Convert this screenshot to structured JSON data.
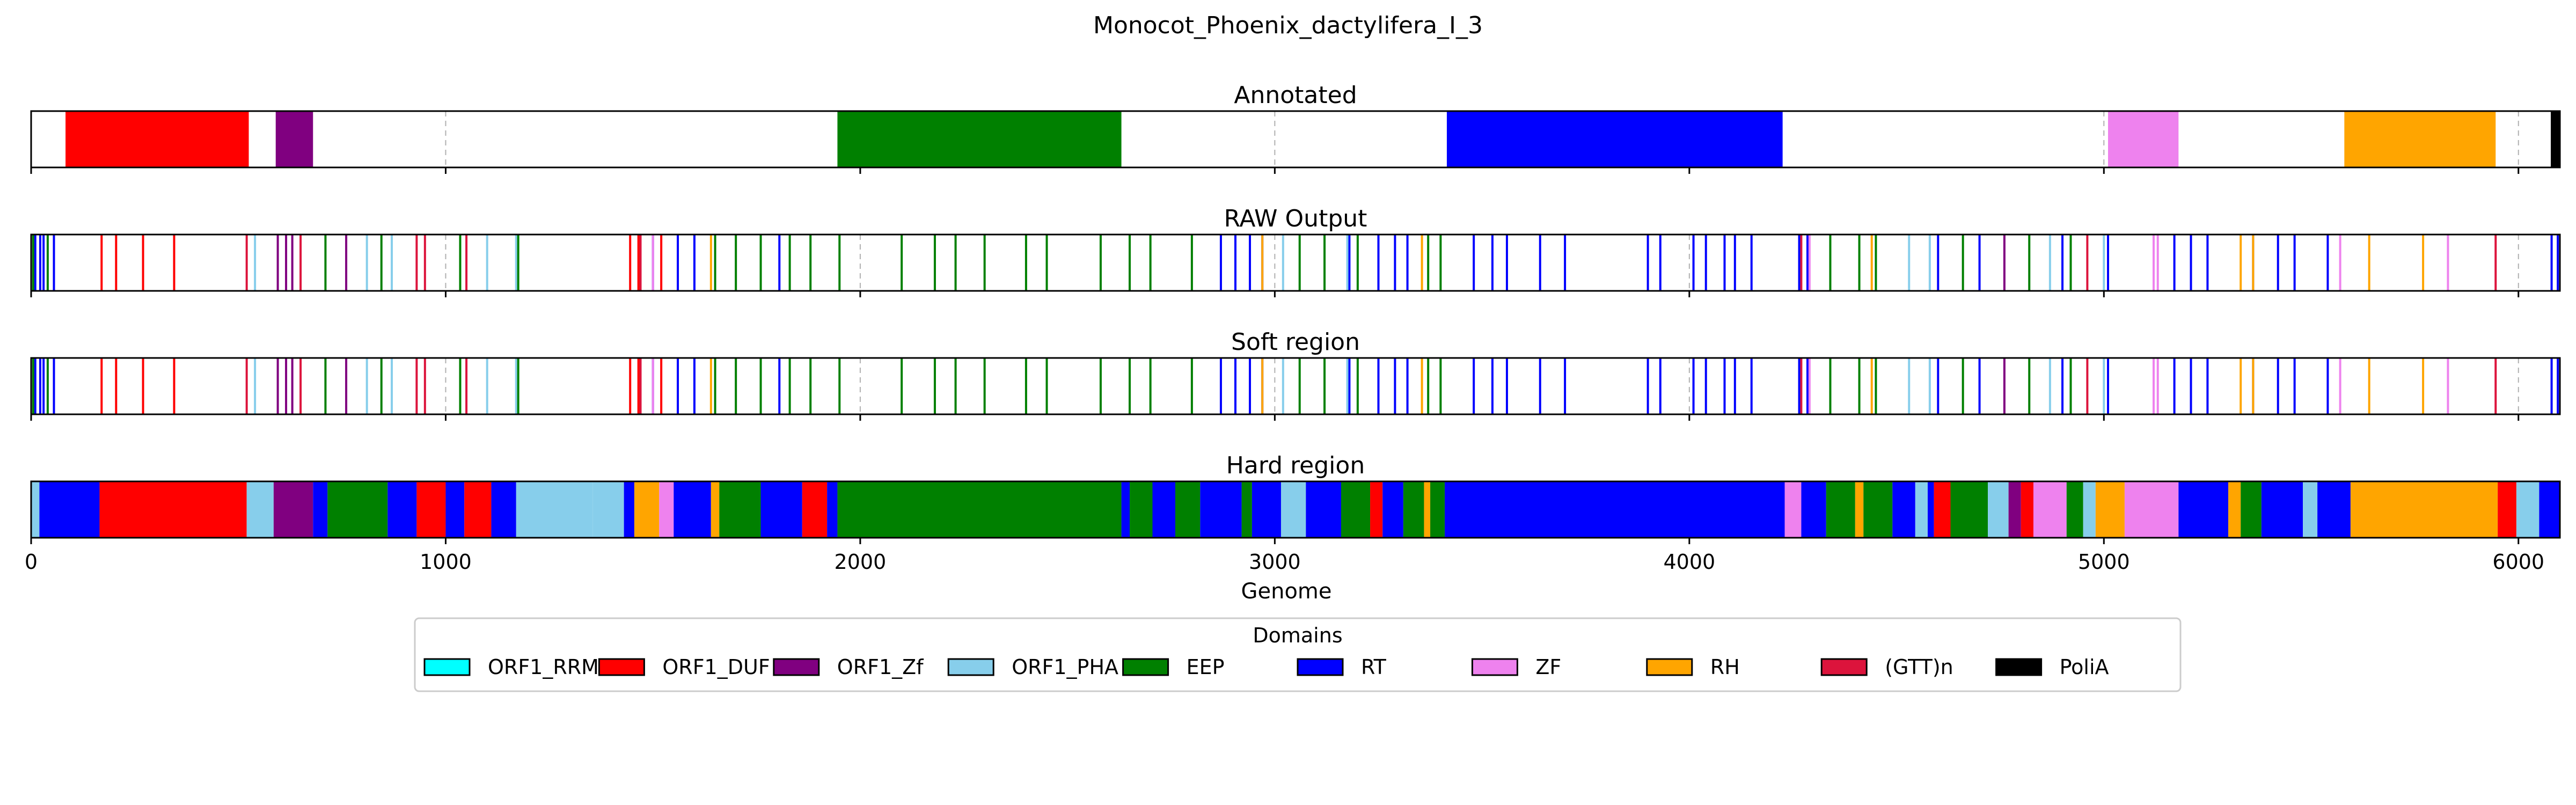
{
  "chart_data": {
    "type": "bar",
    "title": "Monocot_Phoenix_dactylifera_I_3",
    "xlabel": "Genome",
    "xlim": [
      0,
      6100
    ],
    "xticks": [
      0,
      1000,
      2000,
      3000,
      4000,
      5000,
      6000
    ],
    "grid": "vertical dashed gridlines at major x ticks",
    "legend": {
      "title": "Domains",
      "placement": "bottom-center",
      "entries": [
        {
          "label": "ORF1_RRM",
          "color": "#00FFFF"
        },
        {
          "label": "ORF1_DUF",
          "color": "#FF0000"
        },
        {
          "label": "ORF1_Zf",
          "color": "#800080"
        },
        {
          "label": "ORF1_PHA",
          "color": "#87CEEB"
        },
        {
          "label": "EEP",
          "color": "#008000"
        },
        {
          "label": "RT",
          "color": "#0000FF"
        },
        {
          "label": "ZF",
          "color": "#EE82EE"
        },
        {
          "label": "RH",
          "color": "#FFA500"
        },
        {
          "label": "(GTT)n",
          "color": "#DC143C"
        },
        {
          "label": "PoliA",
          "color": "#000000"
        }
      ]
    },
    "panels": [
      {
        "title": "Annotated",
        "segments": [
          {
            "domain": "ORF1_DUF",
            "start": 83,
            "end": 525
          },
          {
            "domain": "ORF1_Zf",
            "start": 590,
            "end": 680
          },
          {
            "domain": "EEP",
            "start": 1945,
            "end": 2630
          },
          {
            "domain": "RT",
            "start": 3415,
            "end": 4225
          },
          {
            "domain": "ZF",
            "start": 5010,
            "end": 5180
          },
          {
            "domain": "RH",
            "start": 5580,
            "end": 5945
          },
          {
            "domain": "PoliA",
            "start": 6078,
            "end": 6100
          }
        ]
      },
      {
        "title": "RAW Output",
        "lines": [
          {
            "domain": "RT",
            "positions": [
              10,
              22,
              30,
              55,
              1500,
              1560,
              1600,
              1805,
              2870,
              2905,
              2940,
              2970,
              3180,
              3250,
              3290,
              3320,
              3480,
              3525,
              3560,
              3640,
              3700,
              3900,
              3930,
              4010,
              4040,
              4085,
              4110,
              4150,
              4265,
              4285,
              4600,
              4700,
              4900,
              5010,
              5170,
              5210,
              5250,
              5360,
              5420,
              5460,
              5540,
              6080,
              6095
            ]
          },
          {
            "domain": "ORF1_DUF",
            "positions": [
              170,
              205,
              270,
              345,
              1445,
              1465,
              1520
            ]
          },
          {
            "domain": "(GTT)n",
            "positions": [
              520,
              650,
              930,
              950,
              1050,
              1470,
              4270,
              4960,
              5945
            ]
          },
          {
            "domain": "ORF1_PHA",
            "positions": [
              540,
              810,
              870,
              1100,
              1170,
              3020,
              3175,
              4530,
              4580,
              4870,
              5000
            ]
          },
          {
            "domain": "ORF1_Zf",
            "positions": [
              595,
              615,
              630,
              760,
              4760
            ]
          },
          {
            "domain": "EEP",
            "positions": [
              5,
              40,
              710,
              845,
              1035,
              1175,
              1650,
              1700,
              1760,
              1830,
              1880,
              1950,
              2100,
              2180,
              2230,
              2300,
              2400,
              2450,
              2580,
              2650,
              2700,
              2800,
              3060,
              3120,
              3200,
              3370,
              3400,
              4340,
              4410,
              4450,
              4660,
              4820,
              4920
            ]
          },
          {
            "domain": "ZF",
            "positions": [
              1500,
              4290,
              5120,
              5130,
              5570,
              5830
            ]
          },
          {
            "domain": "RH",
            "positions": [
              1640,
              2970,
              3355,
              4440,
              5330,
              5360,
              5640,
              5770
            ]
          }
        ]
      },
      {
        "title": "Soft region",
        "lines": [
          {
            "domain": "RT",
            "positions": [
              10,
              22,
              30,
              55,
              1500,
              1560,
              1600,
              1805,
              2870,
              2905,
              2940,
              2970,
              3180,
              3250,
              3290,
              3320,
              3480,
              3525,
              3560,
              3640,
              3700,
              3900,
              3930,
              4010,
              4040,
              4085,
              4110,
              4150,
              4265,
              4285,
              4600,
              4700,
              4900,
              5010,
              5170,
              5210,
              5250,
              5360,
              5420,
              5460,
              5540,
              6080,
              6095
            ]
          },
          {
            "domain": "ORF1_DUF",
            "positions": [
              170,
              205,
              270,
              345,
              1445,
              1465,
              1520
            ]
          },
          {
            "domain": "(GTT)n",
            "positions": [
              520,
              650,
              930,
              950,
              1050,
              1470,
              4270,
              4960,
              5945
            ]
          },
          {
            "domain": "ORF1_PHA",
            "positions": [
              540,
              810,
              870,
              1100,
              1170,
              3020,
              3175,
              4530,
              4580,
              4870,
              5000
            ]
          },
          {
            "domain": "ORF1_Zf",
            "positions": [
              595,
              615,
              630,
              760,
              4760
            ]
          },
          {
            "domain": "EEP",
            "positions": [
              5,
              40,
              710,
              845,
              1035,
              1175,
              1650,
              1700,
              1760,
              1830,
              1880,
              1950,
              2100,
              2180,
              2230,
              2300,
              2400,
              2450,
              2580,
              2650,
              2700,
              2800,
              3060,
              3120,
              3200,
              3370,
              3400,
              4340,
              4410,
              4450,
              4660,
              4820,
              4920
            ]
          },
          {
            "domain": "ZF",
            "positions": [
              1500,
              4290,
              5120,
              5130,
              5570,
              5830
            ]
          },
          {
            "domain": "RH",
            "positions": [
              1640,
              2970,
              3355,
              4440,
              5330,
              5360,
              5640,
              5770
            ]
          }
        ]
      },
      {
        "title": "Hard region",
        "segments": [
          {
            "domain": "ORF1_PHA",
            "start": 0,
            "end": 20
          },
          {
            "domain": "RT",
            "start": 20,
            "end": 165
          },
          {
            "domain": "ORF1_DUF",
            "start": 165,
            "end": 520
          },
          {
            "domain": "ORF1_PHA",
            "start": 520,
            "end": 585
          },
          {
            "domain": "ORF1_Zf",
            "start": 585,
            "end": 680
          },
          {
            "domain": "RT",
            "start": 680,
            "end": 715
          },
          {
            "domain": "EEP",
            "start": 715,
            "end": 860
          },
          {
            "domain": "RT",
            "start": 860,
            "end": 930
          },
          {
            "domain": "ORF1_DUF",
            "start": 930,
            "end": 1000
          },
          {
            "domain": "RT",
            "start": 1000,
            "end": 1045
          },
          {
            "domain": "ORF1_DUF",
            "start": 1045,
            "end": 1110
          },
          {
            "domain": "RT",
            "start": 1110,
            "end": 1170
          },
          {
            "domain": "ORF1_PHA",
            "start": 1170,
            "end": 1355
          },
          {
            "domain": "ORF1_PHA",
            "start": 1355,
            "end": 1430
          },
          {
            "domain": "RT",
            "start": 1430,
            "end": 1455
          },
          {
            "domain": "RH",
            "start": 1455,
            "end": 1515
          },
          {
            "domain": "ZF",
            "start": 1515,
            "end": 1550
          },
          {
            "domain": "RT",
            "start": 1550,
            "end": 1640
          },
          {
            "domain": "RH",
            "start": 1640,
            "end": 1660
          },
          {
            "domain": "EEP",
            "start": 1660,
            "end": 1760
          },
          {
            "domain": "RT",
            "start": 1760,
            "end": 1860
          },
          {
            "domain": "ORF1_DUF",
            "start": 1860,
            "end": 1920
          },
          {
            "domain": "RT",
            "start": 1920,
            "end": 1945
          },
          {
            "domain": "EEP",
            "start": 1945,
            "end": 2630
          },
          {
            "domain": "RT",
            "start": 2630,
            "end": 2650
          },
          {
            "domain": "EEP",
            "start": 2650,
            "end": 2705
          },
          {
            "domain": "RT",
            "start": 2705,
            "end": 2760
          },
          {
            "domain": "EEP",
            "start": 2760,
            "end": 2820
          },
          {
            "domain": "RT",
            "start": 2820,
            "end": 2920
          },
          {
            "domain": "EEP",
            "start": 2920,
            "end": 2945
          },
          {
            "domain": "RT",
            "start": 2945,
            "end": 3015
          },
          {
            "domain": "ORF1_PHA",
            "start": 3015,
            "end": 3075
          },
          {
            "domain": "RT",
            "start": 3075,
            "end": 3160
          },
          {
            "domain": "EEP",
            "start": 3160,
            "end": 3230
          },
          {
            "domain": "ORF1_DUF",
            "start": 3230,
            "end": 3260
          },
          {
            "domain": "RT",
            "start": 3260,
            "end": 3310
          },
          {
            "domain": "EEP",
            "start": 3310,
            "end": 3360
          },
          {
            "domain": "RH",
            "start": 3360,
            "end": 3375
          },
          {
            "domain": "EEP",
            "start": 3375,
            "end": 3410
          },
          {
            "domain": "RT",
            "start": 3410,
            "end": 4230
          },
          {
            "domain": "ZF",
            "start": 4230,
            "end": 4270
          },
          {
            "domain": "RT",
            "start": 4270,
            "end": 4330
          },
          {
            "domain": "EEP",
            "start": 4330,
            "end": 4400
          },
          {
            "domain": "RH",
            "start": 4400,
            "end": 4420
          },
          {
            "domain": "EEP",
            "start": 4420,
            "end": 4490
          },
          {
            "domain": "RT",
            "start": 4490,
            "end": 4545
          },
          {
            "domain": "ORF1_PHA",
            "start": 4545,
            "end": 4575
          },
          {
            "domain": "RT",
            "start": 4575,
            "end": 4590
          },
          {
            "domain": "ORF1_DUF",
            "start": 4590,
            "end": 4630
          },
          {
            "domain": "EEP",
            "start": 4630,
            "end": 4720
          },
          {
            "domain": "ORF1_PHA",
            "start": 4720,
            "end": 4770
          },
          {
            "domain": "ORF1_Zf",
            "start": 4770,
            "end": 4800
          },
          {
            "domain": "ORF1_DUF",
            "start": 4800,
            "end": 4830
          },
          {
            "domain": "ZF",
            "start": 4830,
            "end": 4910
          },
          {
            "domain": "EEP",
            "start": 4910,
            "end": 4950
          },
          {
            "domain": "ORF1_PHA",
            "start": 4950,
            "end": 4980
          },
          {
            "domain": "RH",
            "start": 4980,
            "end": 5050
          },
          {
            "domain": "ZF",
            "start": 5050,
            "end": 5180
          },
          {
            "domain": "RT",
            "start": 5180,
            "end": 5300
          },
          {
            "domain": "RH",
            "start": 5300,
            "end": 5330
          },
          {
            "domain": "EEP",
            "start": 5330,
            "end": 5380
          },
          {
            "domain": "RT",
            "start": 5380,
            "end": 5480
          },
          {
            "domain": "ORF1_PHA",
            "start": 5480,
            "end": 5515
          },
          {
            "domain": "RT",
            "start": 5515,
            "end": 5595
          },
          {
            "domain": "RH",
            "start": 5595,
            "end": 5950
          },
          {
            "domain": "ORF1_DUF",
            "start": 5950,
            "end": 5995
          },
          {
            "domain": "ORF1_PHA",
            "start": 5995,
            "end": 6050
          },
          {
            "domain": "RT",
            "start": 6050,
            "end": 6100
          }
        ]
      }
    ]
  }
}
